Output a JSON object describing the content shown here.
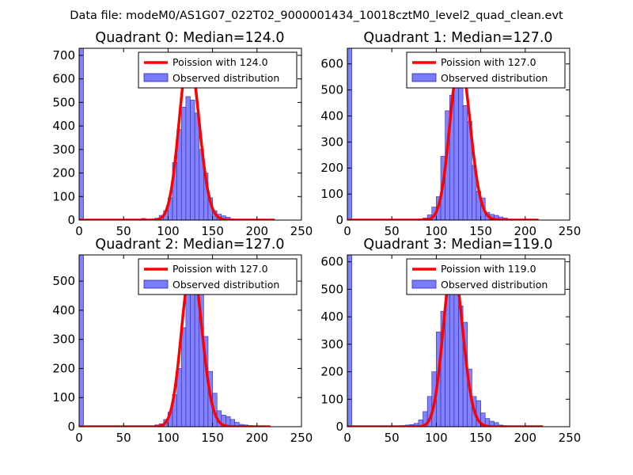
{
  "figure": {
    "title": "Data file: modeM0/AS1G07_022T02_9000001434_10018cztM0_level2_quad_clean.evt"
  },
  "colors": {
    "hist_fill": "#7b7bff",
    "hist_edge": "#2a2aa8",
    "curve": "#ff0000",
    "axis": "#000000"
  },
  "chart_data": [
    {
      "type": "bar",
      "title": "Quadrant 0: Median=124.0",
      "xlim": [
        0,
        250
      ],
      "ylim": [
        0,
        730
      ],
      "xticks": [
        0,
        50,
        100,
        150,
        200,
        250
      ],
      "yticks": [
        0,
        100,
        200,
        300,
        400,
        500,
        600,
        700
      ],
      "bin_width": 5,
      "bins_start": [
        0,
        65,
        70,
        75,
        80,
        85,
        90,
        95,
        100,
        105,
        110,
        115,
        120,
        125,
        130,
        135,
        140,
        145,
        150,
        155,
        160,
        165,
        170,
        175,
        180,
        185
      ],
      "counts": [
        730,
        4,
        7,
        2,
        3,
        8,
        20,
        40,
        95,
        245,
        385,
        480,
        525,
        510,
        455,
        300,
        200,
        95,
        40,
        25,
        18,
        12,
        5,
        3,
        2,
        1
      ],
      "curve": {
        "label": "Poission with 124.0",
        "mean": 124,
        "peak": 700,
        "x_range": [
          0,
          220
        ]
      },
      "legend": {
        "curve": "Poission with 124.0",
        "hist": "Observed distribution",
        "position": "upper-right"
      }
    },
    {
      "type": "bar",
      "title": "Quadrant 1: Median=127.0",
      "xlim": [
        0,
        250
      ],
      "ylim": [
        0,
        660
      ],
      "xticks": [
        0,
        50,
        100,
        150,
        200,
        250
      ],
      "yticks": [
        0,
        100,
        200,
        300,
        400,
        500,
        600
      ],
      "bin_width": 5,
      "bins_start": [
        0,
        70,
        75,
        80,
        85,
        90,
        95,
        100,
        105,
        110,
        115,
        120,
        125,
        130,
        135,
        140,
        145,
        150,
        155,
        160,
        165,
        170,
        175,
        180
      ],
      "counts": [
        660,
        3,
        2,
        4,
        8,
        20,
        50,
        90,
        245,
        420,
        480,
        550,
        510,
        440,
        380,
        210,
        110,
        85,
        30,
        22,
        18,
        12,
        8,
        3
      ],
      "curve": {
        "label": "Poission with 127.0",
        "mean": 127,
        "peak": 620,
        "x_range": [
          0,
          215
        ]
      },
      "legend": {
        "curve": "Poission with 127.0",
        "hist": "Observed distribution",
        "position": "upper-right"
      }
    },
    {
      "type": "bar",
      "title": "Quadrant 2: Median=127.0",
      "xlim": [
        0,
        250
      ],
      "ylim": [
        0,
        590
      ],
      "xticks": [
        0,
        50,
        100,
        150,
        200,
        250
      ],
      "yticks": [
        0,
        100,
        200,
        300,
        400,
        500
      ],
      "bin_width": 5,
      "bins_start": [
        0,
        70,
        75,
        80,
        85,
        90,
        95,
        100,
        105,
        110,
        115,
        120,
        125,
        130,
        135,
        140,
        145,
        150,
        155,
        160,
        165,
        170,
        175,
        180,
        185,
        190,
        195,
        200,
        205
      ],
      "counts": [
        590,
        3,
        2,
        3,
        6,
        10,
        25,
        50,
        110,
        200,
        340,
        490,
        550,
        550,
        470,
        310,
        190,
        115,
        55,
        40,
        35,
        25,
        15,
        8,
        6,
        4,
        3,
        2,
        1
      ],
      "curve": {
        "label": "Poission with 127.0",
        "mean": 127,
        "peak": 560,
        "x_range": [
          0,
          215
        ]
      },
      "legend": {
        "curve": "Poission with 127.0",
        "hist": "Observed distribution",
        "position": "upper-right"
      }
    },
    {
      "type": "bar",
      "title": "Quadrant 3: Median=119.0",
      "xlim": [
        0,
        250
      ],
      "ylim": [
        0,
        625
      ],
      "xticks": [
        0,
        50,
        100,
        150,
        200,
        250
      ],
      "yticks": [
        0,
        100,
        200,
        300,
        400,
        500,
        600
      ],
      "bin_width": 5,
      "bins_start": [
        0,
        60,
        65,
        70,
        75,
        80,
        85,
        90,
        95,
        100,
        105,
        110,
        115,
        120,
        125,
        130,
        135,
        140,
        145,
        150,
        155,
        160,
        165,
        170,
        175,
        180,
        185,
        190
      ],
      "counts": [
        625,
        4,
        6,
        8,
        12,
        25,
        55,
        110,
        200,
        345,
        420,
        545,
        580,
        550,
        440,
        380,
        210,
        110,
        95,
        50,
        30,
        20,
        15,
        6,
        4,
        3,
        2,
        1
      ],
      "curve": {
        "label": "Poission with 119.0",
        "mean": 119,
        "peak": 590,
        "x_range": [
          0,
          220
        ]
      },
      "legend": {
        "curve": "Poission with 119.0",
        "hist": "Observed distribution",
        "position": "upper-right"
      }
    }
  ]
}
